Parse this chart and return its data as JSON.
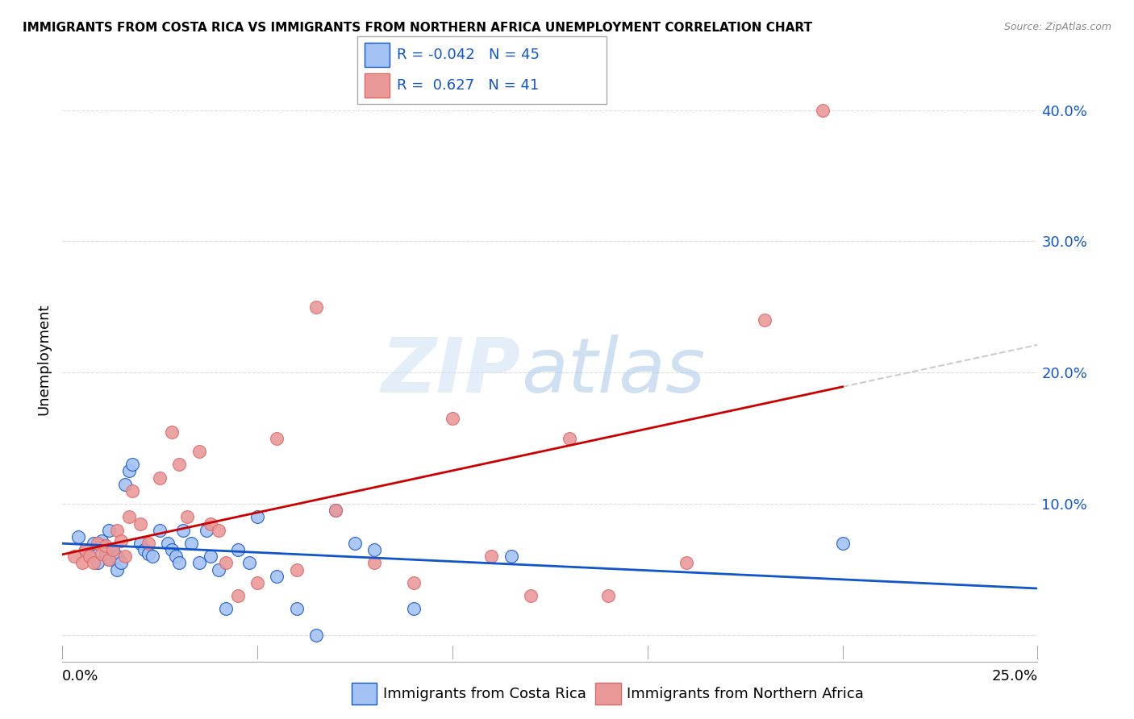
{
  "title": "IMMIGRANTS FROM COSTA RICA VS IMMIGRANTS FROM NORTHERN AFRICA UNEMPLOYMENT CORRELATION CHART",
  "source": "Source: ZipAtlas.com",
  "ylabel": "Unemployment",
  "ytick_labels": [
    "",
    "10.0%",
    "20.0%",
    "30.0%",
    "40.0%"
  ],
  "ytick_values": [
    0,
    0.1,
    0.2,
    0.3,
    0.4
  ],
  "xlim": [
    0,
    0.25
  ],
  "ylim": [
    -0.02,
    0.44
  ],
  "legend_R1": "-0.042",
  "legend_N1": "45",
  "legend_R2": "0.627",
  "legend_N2": "41",
  "color_blue": "#a4c2f4",
  "color_pink": "#ea9999",
  "color_blue_line": "#1155cc",
  "color_pink_line": "#cc0000",
  "color_dashed": "#cccccc",
  "blue_x": [
    0.004,
    0.006,
    0.007,
    0.008,
    0.009,
    0.01,
    0.01,
    0.011,
    0.012,
    0.012,
    0.013,
    0.014,
    0.014,
    0.015,
    0.016,
    0.017,
    0.018,
    0.02,
    0.021,
    0.022,
    0.023,
    0.025,
    0.027,
    0.028,
    0.029,
    0.03,
    0.031,
    0.033,
    0.035,
    0.037,
    0.038,
    0.04,
    0.042,
    0.045,
    0.048,
    0.05,
    0.055,
    0.06,
    0.065,
    0.07,
    0.075,
    0.08,
    0.09,
    0.115,
    0.2
  ],
  "blue_y": [
    0.075,
    0.065,
    0.06,
    0.07,
    0.055,
    0.072,
    0.068,
    0.062,
    0.08,
    0.058,
    0.065,
    0.06,
    0.05,
    0.055,
    0.115,
    0.125,
    0.13,
    0.07,
    0.065,
    0.062,
    0.06,
    0.08,
    0.07,
    0.065,
    0.06,
    0.055,
    0.08,
    0.07,
    0.055,
    0.08,
    0.06,
    0.05,
    0.02,
    0.065,
    0.055,
    0.09,
    0.045,
    0.02,
    0.0,
    0.095,
    0.07,
    0.065,
    0.02,
    0.06,
    0.07
  ],
  "pink_x": [
    0.003,
    0.005,
    0.006,
    0.007,
    0.008,
    0.009,
    0.01,
    0.011,
    0.012,
    0.013,
    0.014,
    0.015,
    0.016,
    0.017,
    0.018,
    0.02,
    0.022,
    0.025,
    0.028,
    0.03,
    0.032,
    0.035,
    0.038,
    0.04,
    0.042,
    0.045,
    0.05,
    0.055,
    0.06,
    0.065,
    0.07,
    0.08,
    0.09,
    0.1,
    0.11,
    0.12,
    0.13,
    0.14,
    0.16,
    0.18,
    0.195
  ],
  "pink_y": [
    0.06,
    0.055,
    0.065,
    0.06,
    0.055,
    0.07,
    0.062,
    0.068,
    0.058,
    0.065,
    0.08,
    0.072,
    0.06,
    0.09,
    0.11,
    0.085,
    0.07,
    0.12,
    0.155,
    0.13,
    0.09,
    0.14,
    0.085,
    0.08,
    0.055,
    0.03,
    0.04,
    0.15,
    0.05,
    0.25,
    0.095,
    0.055,
    0.04,
    0.165,
    0.06,
    0.03,
    0.15,
    0.03,
    0.055,
    0.24,
    0.4
  ]
}
